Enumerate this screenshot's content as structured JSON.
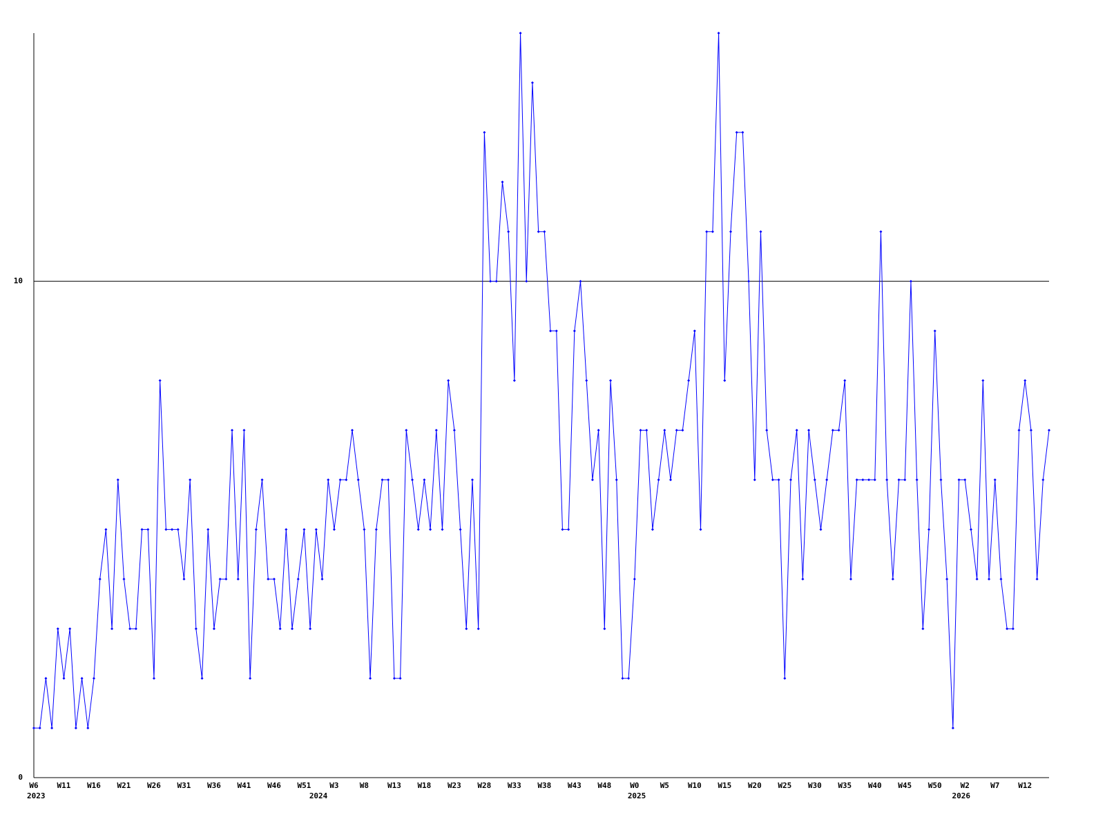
{
  "chart_data": {
    "type": "line",
    "categories": [
      "W6",
      null,
      null,
      null,
      null,
      "W11",
      null,
      null,
      null,
      null,
      "W16",
      null,
      null,
      null,
      null,
      "W21",
      null,
      null,
      null,
      null,
      "W26",
      null,
      null,
      null,
      null,
      "W31",
      null,
      null,
      null,
      null,
      "W36",
      null,
      null,
      null,
      null,
      "W41",
      null,
      null,
      null,
      null,
      "W46",
      null,
      null,
      null,
      null,
      "W51",
      null,
      null,
      null,
      null,
      "W3",
      null,
      null,
      null,
      null,
      "W8",
      null,
      null,
      null,
      null,
      "W13",
      null,
      null,
      null,
      null,
      "W18",
      null,
      null,
      null,
      null,
      "W23",
      null,
      null,
      null,
      null,
      "W28",
      null,
      null,
      null,
      null,
      "W33",
      null,
      null,
      null,
      null,
      "W38",
      null,
      null,
      null,
      null,
      "W43",
      null,
      null,
      null,
      null,
      "W48",
      null,
      null,
      null,
      null,
      "W0",
      null,
      null,
      null,
      null,
      "W5",
      null,
      null,
      null,
      null,
      "W10",
      null,
      null,
      null,
      null,
      "W15",
      null,
      null,
      null,
      null,
      "W20",
      null,
      null,
      null,
      null,
      "W25",
      null,
      null,
      null,
      null,
      "W30",
      null,
      null,
      null,
      null,
      "W35",
      null,
      null,
      null,
      null,
      "W40",
      null,
      null,
      null,
      null,
      "W45",
      null,
      null,
      null,
      null,
      "W50",
      null,
      null,
      null,
      null,
      "W2",
      null,
      null,
      null,
      null,
      "W7",
      null,
      null,
      null,
      null,
      "W12",
      null,
      null,
      null,
      null
    ],
    "category_years": [
      "2023",
      null,
      null,
      null,
      null,
      null,
      null,
      null,
      null,
      null,
      null,
      null,
      null,
      null,
      null,
      null,
      null,
      null,
      null,
      null,
      null,
      null,
      null,
      null,
      null,
      null,
      null,
      null,
      null,
      null,
      null,
      null,
      null,
      null,
      null,
      null,
      null,
      null,
      null,
      null,
      null,
      null,
      null,
      null,
      null,
      null,
      null,
      "2024",
      null,
      null,
      null,
      null,
      null,
      null,
      null,
      null,
      null,
      null,
      null,
      null,
      null,
      null,
      null,
      null,
      null,
      null,
      null,
      null,
      null,
      null,
      null,
      null,
      null,
      null,
      null,
      null,
      null,
      null,
      null,
      null,
      null,
      null,
      null,
      null,
      null,
      null,
      null,
      null,
      null,
      null,
      null,
      null,
      null,
      null,
      null,
      null,
      null,
      null,
      null,
      null,
      "2025",
      null,
      null,
      null,
      null,
      null,
      null,
      null,
      null,
      null,
      null,
      null,
      null,
      null,
      null,
      null,
      null,
      null,
      null,
      null,
      null,
      null,
      null,
      null,
      null,
      null,
      null,
      null,
      null,
      null,
      null,
      null,
      null,
      null,
      null,
      null,
      null,
      null,
      null,
      null,
      null,
      null,
      null,
      null,
      null,
      null,
      null,
      null,
      null,
      null,
      null,
      null,
      null,
      null,
      "2026",
      null,
      null,
      null,
      null,
      null,
      null,
      null,
      null,
      null,
      null,
      null,
      null,
      null,
      null,
      null
    ],
    "series": [
      {
        "color": "#0000ff",
        "values": [
          1,
          1,
          2,
          1,
          3,
          2,
          3,
          1,
          2,
          1,
          2,
          4,
          5,
          3,
          6,
          4,
          3,
          3,
          5,
          5,
          2,
          8,
          5,
          5,
          5,
          4,
          6,
          3,
          2,
          5,
          3,
          4,
          4,
          7,
          4,
          7,
          2,
          5,
          6,
          4,
          4,
          3,
          5,
          3,
          4,
          5,
          3,
          5,
          4,
          6,
          5,
          6,
          6,
          7,
          6,
          5,
          2,
          5,
          6,
          6,
          2,
          2,
          7,
          6,
          5,
          6,
          5,
          7,
          5,
          8,
          7,
          5,
          3,
          6,
          3,
          13,
          10,
          10,
          12,
          11,
          8,
          15,
          10,
          14,
          11,
          11,
          9,
          9,
          5,
          5,
          9,
          10,
          8,
          6,
          7,
          3,
          8,
          6,
          2,
          2,
          4,
          7,
          7,
          5,
          6,
          7,
          6,
          7,
          7,
          8,
          9,
          5,
          11,
          11,
          15,
          8,
          11,
          13,
          13,
          10,
          6,
          11,
          7,
          6,
          6,
          2,
          6,
          7,
          4,
          7,
          6,
          5,
          6,
          7,
          7,
          8,
          4,
          6,
          6,
          6,
          6,
          11,
          6,
          4,
          6,
          6,
          10,
          6,
          3,
          5,
          9,
          6,
          4,
          1,
          6,
          6,
          5,
          4,
          8,
          4,
          6,
          4,
          3,
          3,
          7,
          8,
          7,
          4,
          6,
          7
        ]
      }
    ],
    "ylim": [
      0,
      15
    ],
    "yticks": [
      0,
      10
    ],
    "grid": true
  }
}
